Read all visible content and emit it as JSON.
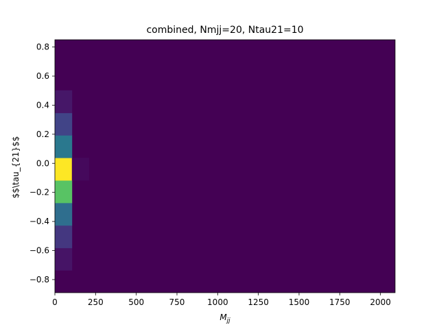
{
  "chart_data": {
    "type": "heatmap",
    "title": "combined, Nmjj=20, Ntau21=10",
    "xlabel": "M",
    "xlabel_subscript": "jj",
    "ylabel": "$$\\tau_{21}$$",
    "xlim": [
      0,
      2090
    ],
    "ylim": [
      -0.89,
      0.85
    ],
    "x_ticks": [
      0,
      250,
      500,
      750,
      1000,
      1250,
      1500,
      1750,
      2000
    ],
    "x_tick_labels": [
      "0",
      "250",
      "500",
      "750",
      "1000",
      "1250",
      "1500",
      "1750",
      "2000"
    ],
    "y_ticks": [
      -0.8,
      -0.6,
      -0.4,
      -0.2,
      0.0,
      0.2,
      0.4,
      0.6,
      0.8
    ],
    "y_tick_labels": [
      "−0.8",
      "−0.6",
      "−0.4",
      "−0.2",
      "0.0",
      "0.2",
      "0.4",
      "0.6",
      "0.8"
    ],
    "colormap": "viridis",
    "background_value": 0,
    "x_bin_edges": [
      0,
      104.5,
      209
    ],
    "y_bin_edges": [
      -0.891,
      -0.736,
      -0.582,
      -0.427,
      -0.272,
      -0.117,
      0.038,
      0.193,
      0.347,
      0.502,
      0.657
    ],
    "values": [
      [
        0.0,
        0.0
      ],
      [
        0.07,
        0.0
      ],
      [
        0.2,
        0.0
      ],
      [
        0.45,
        0.0
      ],
      [
        0.8,
        0.0
      ],
      [
        1.0,
        0.03
      ],
      [
        0.5,
        0.0
      ],
      [
        0.25,
        0.0
      ],
      [
        0.08,
        0.0
      ],
      [
        0.0,
        0.0
      ]
    ],
    "grid": false,
    "legend": "none"
  }
}
